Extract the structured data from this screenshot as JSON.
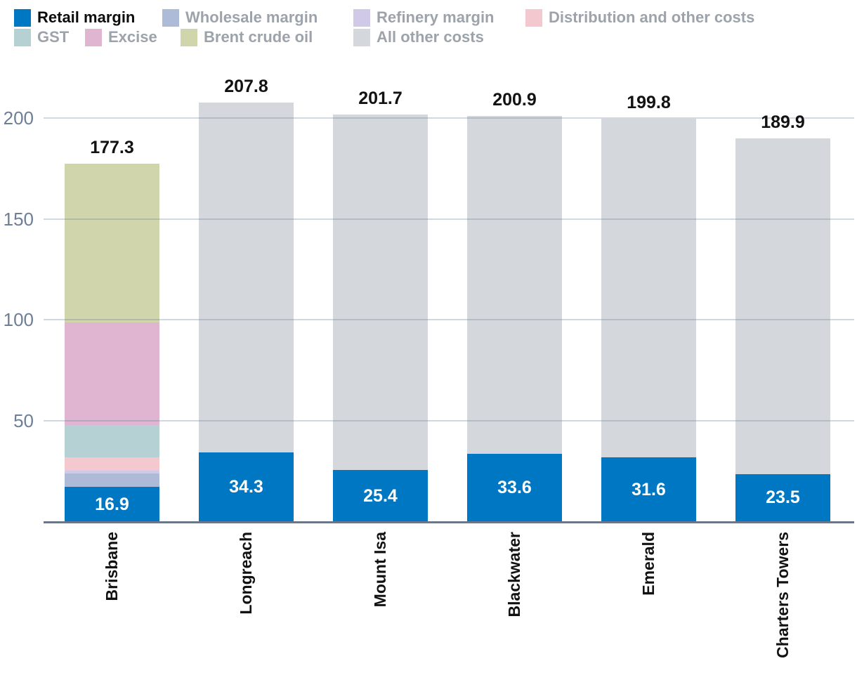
{
  "legend": {
    "items": [
      {
        "label": "Retail margin",
        "color": "#0077c3",
        "active": true
      },
      {
        "label": "Wholesale margin",
        "color": "#adbbd9",
        "active": false
      },
      {
        "label": "Refinery margin",
        "color": "#d0c9e8",
        "active": false
      },
      {
        "label": "Distribution and other costs",
        "color": "#f3c8ce",
        "active": false
      },
      {
        "label": "GST",
        "color": "#b5d1d4",
        "active": false
      },
      {
        "label": "Excise",
        "color": "#e0b5d2",
        "active": false
      },
      {
        "label": "Brent crude oil",
        "color": "#d0d5ab",
        "active": false
      },
      {
        "label": "All other costs",
        "color": "#d4d7db",
        "active": false
      }
    ]
  },
  "chart_data": {
    "type": "bar",
    "stacked": true,
    "orientation": "vertical",
    "categories": [
      "Brisbane",
      "Longreach",
      "Mount Isa",
      "Blackwater",
      "Emerald",
      "Charters Towers"
    ],
    "series": [
      {
        "name": "Retail margin",
        "color": "#0077c3",
        "values": [
          16.9,
          34.3,
          25.4,
          33.6,
          31.6,
          23.5
        ],
        "labeled": true
      },
      {
        "name": "Wholesale margin",
        "color": "#adbbd9",
        "values": [
          6.8,
          0,
          0,
          0,
          0,
          0
        ],
        "labeled": false
      },
      {
        "name": "Refinery margin",
        "color": "#d0c9e8",
        "values": [
          1.5,
          0,
          0,
          0,
          0,
          0
        ],
        "labeled": false
      },
      {
        "name": "Distribution and other costs",
        "color": "#f3c8ce",
        "values": [
          6.6,
          0,
          0,
          0,
          0,
          0
        ],
        "labeled": false
      },
      {
        "name": "GST",
        "color": "#b5d1d4",
        "values": [
          16.1,
          0,
          0,
          0,
          0,
          0
        ],
        "labeled": false
      },
      {
        "name": "Excise",
        "color": "#e0b5d2",
        "values": [
          50.8,
          0,
          0,
          0,
          0,
          0
        ],
        "labeled": false
      },
      {
        "name": "Brent crude oil",
        "color": "#d0d5ab",
        "values": [
          78.6,
          0,
          0,
          0,
          0,
          0
        ],
        "labeled": false
      },
      {
        "name": "All other costs",
        "color": "#d4d7db",
        "values": [
          0,
          173.5,
          176.3,
          167.3,
          168.2,
          166.4
        ],
        "labeled": false
      }
    ],
    "totals": [
      177.3,
      207.8,
      201.7,
      200.9,
      199.8,
      189.9
    ],
    "retail_segment_labels": [
      "16.9",
      "34.3",
      "25.4",
      "33.6",
      "31.6",
      "23.5"
    ],
    "yticks": [
      50,
      100,
      150,
      200
    ],
    "ylim": [
      0,
      225
    ],
    "grid": "horizontal",
    "legend_position": "top"
  },
  "colors": {
    "axis_line": "#6b7689",
    "grid_line": "rgba(106,126,150,0.30)",
    "tick_text": "#6e7e96",
    "total_text": "#121212",
    "bar_value_text": "#ffffff",
    "legend_inactive_text": "#9da3ab",
    "legend_active_text": "#0d0d0d",
    "background": "#ffffff"
  }
}
